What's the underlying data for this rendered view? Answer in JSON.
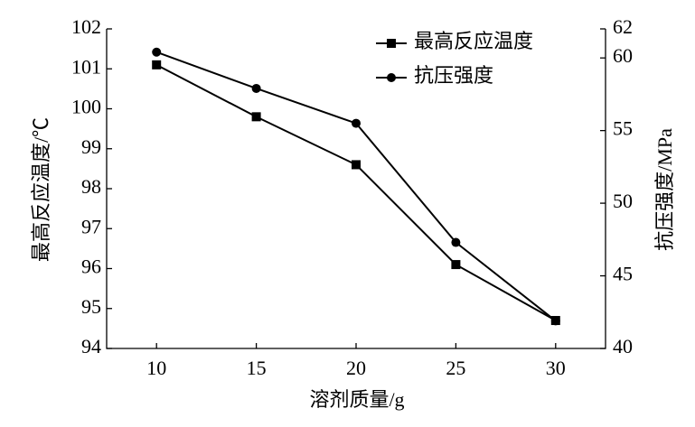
{
  "chart_data": {
    "type": "line",
    "x_label": "溶剂质量/g",
    "y_label": "最高反应温度/℃",
    "y2_label": "抗压强度/MPa",
    "x": [
      10,
      15,
      20,
      25,
      30
    ],
    "xlim": [
      7.5,
      32.5
    ],
    "xticks": [
      10,
      15,
      20,
      25,
      30
    ],
    "ylim": [
      94,
      102
    ],
    "yticks": [
      94,
      95,
      96,
      97,
      98,
      99,
      100,
      101,
      102
    ],
    "y2lim": [
      40,
      62
    ],
    "y2ticks": [
      40,
      45,
      50,
      55,
      60,
      62
    ],
    "grid": false,
    "legend": "top-right",
    "series": [
      {
        "name": "最高反应温度",
        "color": "#000000",
        "marker": "square",
        "values": [
          101.1,
          99.8,
          98.6,
          96.1,
          94.7
        ]
      },
      {
        "name": "抗压强度",
        "color": "#000000",
        "marker": "circle",
        "axis": "y2",
        "values": [
          60.4,
          57.9,
          55.5,
          47.3,
          41.9
        ]
      }
    ]
  }
}
